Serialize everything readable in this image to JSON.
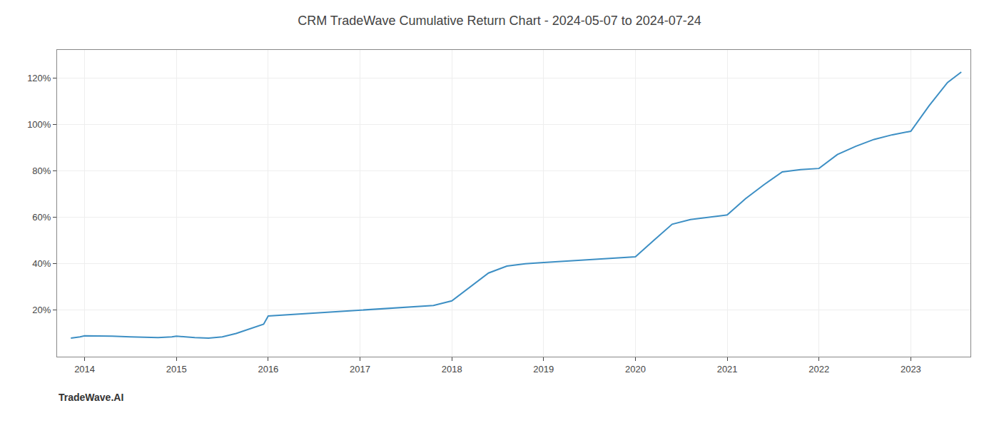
{
  "chart_data": {
    "type": "line",
    "title": "CRM TradeWave Cumulative Return Chart - 2024-05-07 to 2024-07-24",
    "annotations": [
      "TradeWave.AI"
    ],
    "color": "#3d8fc4",
    "x": [
      2013.85,
      2013.95,
      2014.0,
      2014.15,
      2014.3,
      2014.5,
      2014.65,
      2014.8,
      2014.95,
      2015.0,
      2015.1,
      2015.2,
      2015.35,
      2015.5,
      2015.65,
      2015.8,
      2015.95,
      2016.0,
      2016.2,
      2016.4,
      2016.6,
      2016.8,
      2017.0,
      2017.2,
      2017.4,
      2017.6,
      2017.8,
      2018.0,
      2018.2,
      2018.4,
      2018.6,
      2018.8,
      2019.0,
      2019.2,
      2019.4,
      2019.6,
      2019.8,
      2020.0,
      2020.2,
      2020.4,
      2020.6,
      2020.8,
      2021.0,
      2021.2,
      2021.4,
      2021.6,
      2021.8,
      2022.0,
      2022.2,
      2022.4,
      2022.6,
      2022.8,
      2023.0,
      2023.2,
      2023.4,
      2023.55
    ],
    "values": [
      8.0,
      8.5,
      9.0,
      9.0,
      8.8,
      8.5,
      8.3,
      8.2,
      8.5,
      8.8,
      8.5,
      8.2,
      8.0,
      8.5,
      10.0,
      12.0,
      14.0,
      17.5,
      18.0,
      18.5,
      19.0,
      19.5,
      20.0,
      20.5,
      21.0,
      21.5,
      22.0,
      24.0,
      30.0,
      36.0,
      39.0,
      40.0,
      40.5,
      41.0,
      41.5,
      42.0,
      42.5,
      43.0,
      50.0,
      57.0,
      59.0,
      60.0,
      61.0,
      68.0,
      74.0,
      79.5,
      80.5,
      81.0,
      87.0,
      90.5,
      93.5,
      95.5,
      97.0,
      108.0,
      118.0,
      122.5
    ],
    "xlim": [
      2013.7,
      2023.65
    ],
    "ylim": [
      0,
      132
    ],
    "xticks": [
      2014,
      2015,
      2016,
      2017,
      2018,
      2019,
      2020,
      2021,
      2022,
      2023
    ],
    "yticks": [
      {
        "value": 20,
        "label": "20%"
      },
      {
        "value": 40,
        "label": "40%"
      },
      {
        "value": 60,
        "label": "60%"
      },
      {
        "value": 80,
        "label": "80%"
      },
      {
        "value": 100,
        "label": "100%"
      },
      {
        "value": 120,
        "label": "120%"
      }
    ],
    "grid": true
  }
}
